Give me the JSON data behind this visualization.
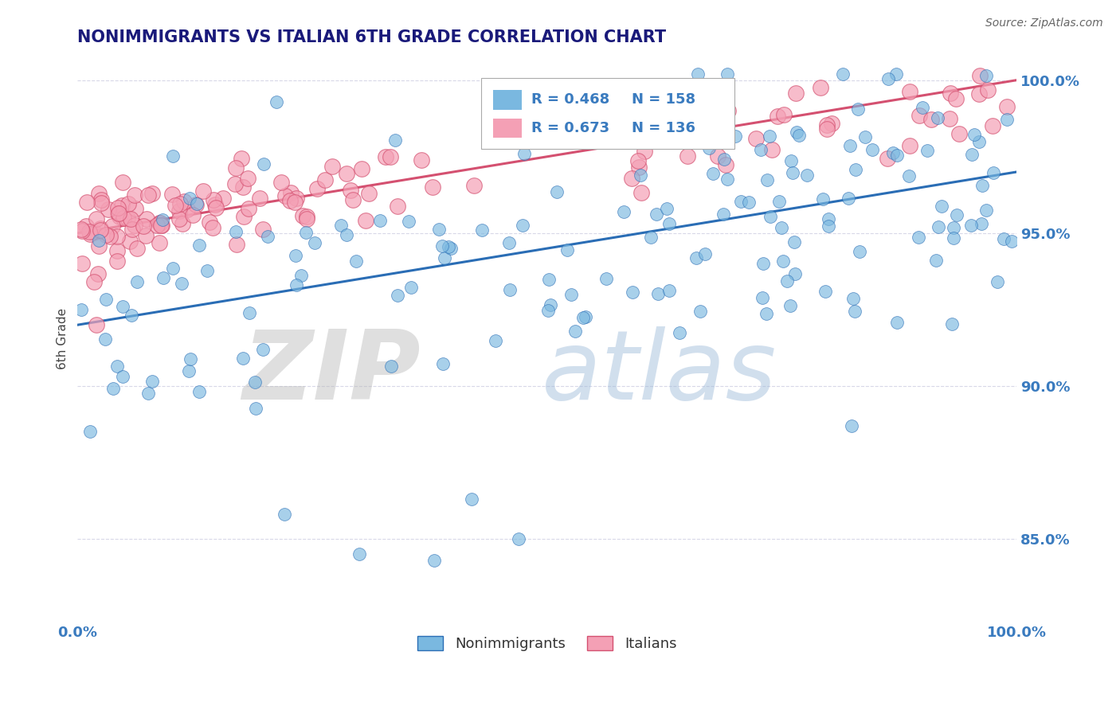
{
  "title": "NONIMMIGRANTS VS ITALIAN 6TH GRADE CORRELATION CHART",
  "source": "Source: ZipAtlas.com",
  "ylabel": "6th Grade",
  "ytick_labels": [
    "85.0%",
    "90.0%",
    "95.0%",
    "100.0%"
  ],
  "ytick_values": [
    0.85,
    0.9,
    0.95,
    1.0
  ],
  "xmin": 0.0,
  "xmax": 1.0,
  "ymin": 0.823,
  "ymax": 1.008,
  "legend_r1": "0.468",
  "legend_n1": "158",
  "legend_r2": "0.673",
  "legend_n2": "136",
  "blue_color": "#7ab8e0",
  "pink_color": "#f4a0b5",
  "blue_line_color": "#2a6db5",
  "pink_line_color": "#d45070",
  "title_color": "#1a1a7a",
  "label_color": "#3a7bbf",
  "watermark_zip_color": "#c0c0c0",
  "watermark_atlas_color": "#9ab8d8",
  "background_color": "#ffffff",
  "grid_color": "#d8d8e8",
  "blue_trend_x0": 0.0,
  "blue_trend_x1": 1.0,
  "blue_trend_y0": 0.92,
  "blue_trend_y1": 0.97,
  "pink_trend_x0": 0.0,
  "pink_trend_x1": 1.0,
  "pink_trend_y0": 0.95,
  "pink_trend_y1": 1.0
}
